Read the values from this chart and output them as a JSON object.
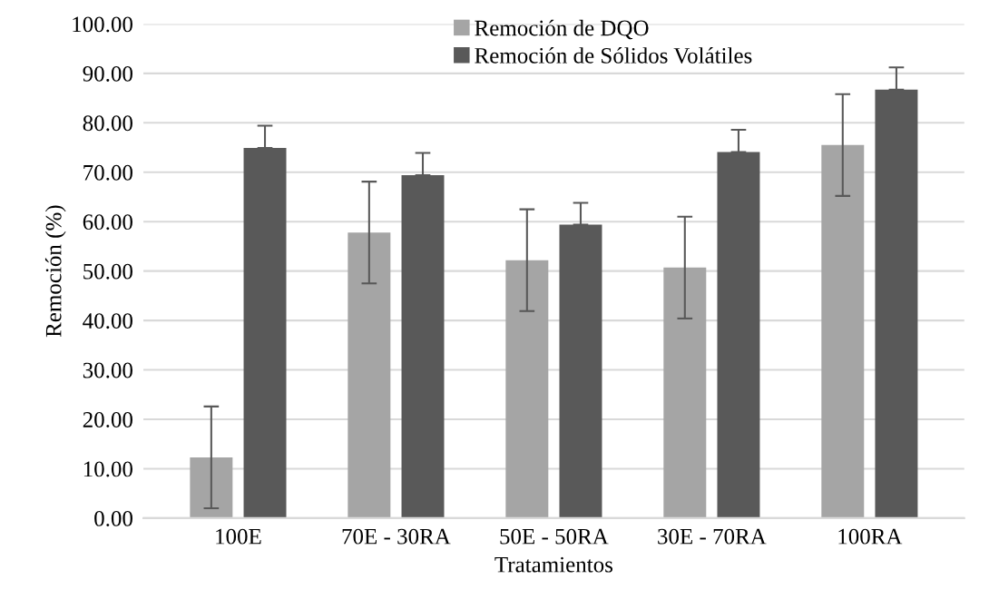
{
  "chart_data": {
    "type": "bar",
    "xlabel": "Tratamientos",
    "ylabel": "Remoción (%)",
    "categories": [
      "100E",
      "70E - 30RA",
      "50E - 50RA",
      "30E - 70RA",
      "100RA"
    ],
    "series": [
      {
        "name": "Remoción de DQO",
        "color": "#a5a5a5",
        "values": [
          12.3,
          57.8,
          52.2,
          50.7,
          75.5
        ],
        "errors": [
          10.3,
          10.3,
          10.3,
          10.3,
          10.3
        ]
      },
      {
        "name": "Remoción de Sólidos Volátiles",
        "color": "#595959",
        "values": [
          74.9,
          69.4,
          59.4,
          74.1,
          86.7
        ],
        "errors": [
          [
            74.9,
            79.4
          ],
          [
            69.4,
            73.9
          ],
          [
            59.4,
            63.8
          ],
          [
            74.1,
            78.6
          ],
          [
            86.7,
            91.2
          ]
        ]
      }
    ],
    "ylim": [
      0,
      100
    ],
    "yticks": [
      {
        "value": 0,
        "label": "0.00"
      },
      {
        "value": 10,
        "label": "10.00"
      },
      {
        "value": 20,
        "label": "20.00"
      },
      {
        "value": 30,
        "label": "30.00"
      },
      {
        "value": 40,
        "label": "40.00"
      },
      {
        "value": 50,
        "label": "50.00"
      },
      {
        "value": 60,
        "label": "60.00"
      },
      {
        "value": 70,
        "label": "70.00"
      },
      {
        "value": 80,
        "label": "80.00"
      },
      {
        "value": 90,
        "label": "90.00"
      },
      {
        "value": 100,
        "label": "100.00"
      }
    ],
    "grid": "y",
    "legend": "top"
  }
}
